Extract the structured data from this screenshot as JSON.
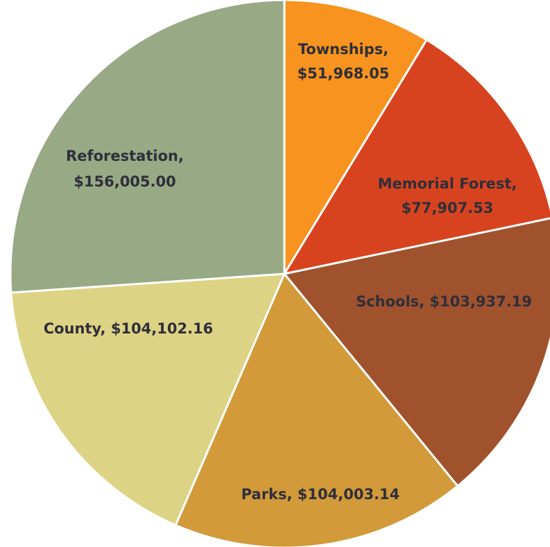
{
  "chart_data": {
    "type": "pie",
    "title": "",
    "slices": [
      {
        "label": "Townships",
        "value": 51968.05,
        "value_text": "$51,968.05",
        "color": "#F7931E"
      },
      {
        "label": "Memorial Forest",
        "value": 77907.53,
        "value_text": "$77,907.53",
        "color": "#D8431F"
      },
      {
        "label": "Schools",
        "value": 103937.19,
        "value_text": "$103,937.19",
        "color": "#A0522D"
      },
      {
        "label": "Parks",
        "value": 104003.14,
        "value_text": "$104,003.14",
        "color": "#D39A3A"
      },
      {
        "label": "County",
        "value": 104102.16,
        "value_text": "$104,102.16",
        "color": "#DDD384"
      },
      {
        "label": "Reforestation",
        "value": 156005.0,
        "value_text": "$156,005.00",
        "color": "#98A985"
      }
    ],
    "legend": "none",
    "label_position": "inside"
  }
}
